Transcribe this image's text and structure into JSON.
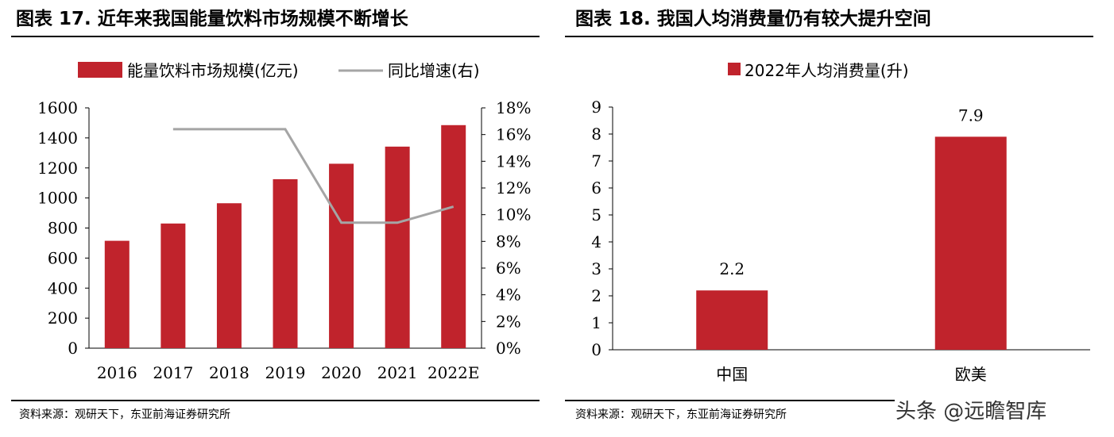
{
  "chart_data": [
    {
      "type": "bar",
      "title": "图表 17. 近年来我国能量饮料市场规模不断增长",
      "categories": [
        "2016",
        "2017",
        "2018",
        "2019",
        "2020",
        "2021",
        "2022E"
      ],
      "series": [
        {
          "name": "能量饮料市场规模(亿元)",
          "kind": "bar",
          "axis": "left",
          "color": "#c0232c",
          "values": [
            715,
            830,
            965,
            1125,
            1228,
            1342,
            1485
          ]
        },
        {
          "name": "同比增速(右)",
          "kind": "line",
          "axis": "right",
          "color": "#a5a5a5",
          "values": [
            null,
            16.4,
            16.4,
            16.4,
            9.4,
            9.4,
            10.6
          ]
        }
      ],
      "ylim": [
        0,
        1600
      ],
      "yticks": [
        "0",
        "200",
        "400",
        "600",
        "800",
        "1000",
        "1200",
        "1400",
        "1600"
      ],
      "y2lim": [
        0,
        18
      ],
      "y2ticks": [
        "0%",
        "2%",
        "4%",
        "6%",
        "8%",
        "10%",
        "12%",
        "14%",
        "16%",
        "18%"
      ],
      "legend_position": "top",
      "source": "资料来源：观研天下，东亚前海证券研究所"
    },
    {
      "type": "bar",
      "title": "图表 18. 我国人均消费量仍有较大提升空间",
      "categories": [
        "中国",
        "欧美"
      ],
      "series": [
        {
          "name": "2022年人均消费量(升)",
          "kind": "bar",
          "color": "#c0232c",
          "values": [
            2.2,
            7.9
          ]
        }
      ],
      "data_labels": [
        "2.2",
        "7.9"
      ],
      "ylim": [
        0,
        9
      ],
      "yticks": [
        "0",
        "1",
        "2",
        "3",
        "4",
        "5",
        "6",
        "7",
        "8",
        "9"
      ],
      "legend_position": "top",
      "source": "资料来源：观研天下，东亚前海证券研究所"
    }
  ],
  "watermark": "头条 @远瞻智库"
}
